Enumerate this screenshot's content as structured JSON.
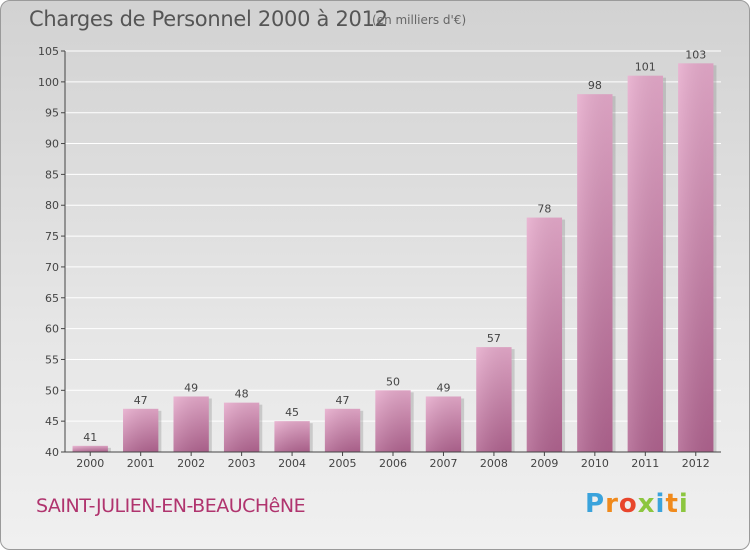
{
  "header": {
    "title": "Charges de Personnel 2000 à 2012",
    "subtitle": "(en milliers d'€)"
  },
  "footer": {
    "commune": "SAINT-JULIEN-EN-BEAUCHêNE",
    "logo_letters": [
      "P",
      "r",
      "o",
      "x",
      "i",
      "t",
      "i"
    ],
    "logo_colors": [
      "#3aa3dc",
      "#f08a1c",
      "#e8452c",
      "#8cc63f",
      "#3aa3dc",
      "#f08a1c",
      "#8cc63f"
    ]
  },
  "colors": {
    "bar_top": "#e6aacb",
    "bar_bottom": "#b0638f",
    "axis": "#444444",
    "grid": "#ffffff",
    "text": "#444444"
  },
  "chart_data": {
    "type": "bar",
    "title": "Charges de Personnel 2000 à 2012",
    "subtitle": "(en milliers d'€)",
    "categories": [
      "2000",
      "2001",
      "2002",
      "2003",
      "2004",
      "2005",
      "2006",
      "2007",
      "2008",
      "2009",
      "2010",
      "2011",
      "2012"
    ],
    "values": [
      41,
      47,
      49,
      48,
      45,
      47,
      50,
      49,
      57,
      78,
      98,
      101,
      103
    ],
    "ylim": [
      40,
      105
    ],
    "yticks": [
      40,
      45,
      50,
      55,
      60,
      65,
      70,
      75,
      80,
      85,
      90,
      95,
      100,
      105
    ],
    "grid": true,
    "xlabel": "",
    "ylabel": ""
  }
}
